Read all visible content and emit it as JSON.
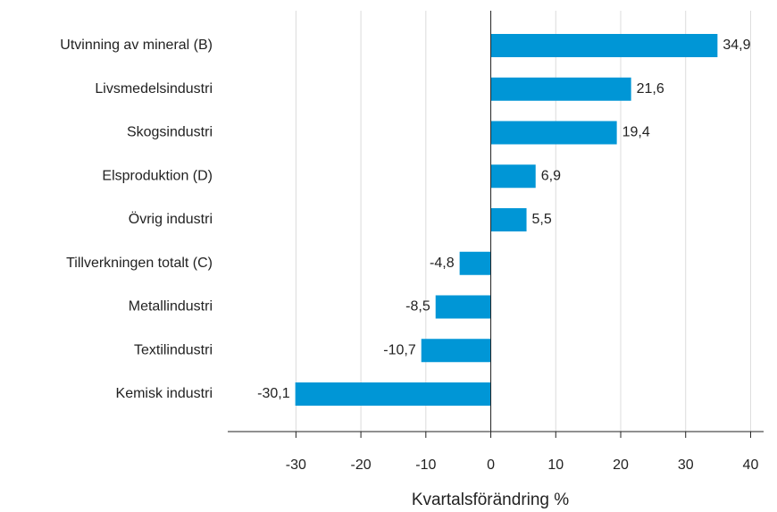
{
  "chart_data": {
    "type": "hbar",
    "xlabel": "Kvartalsförändring %",
    "categories": [
      "Utvinning av mineral (B)",
      "Livsmedelsindustri",
      "Skogsindustri",
      "Elsproduktion (D)",
      "Övrig industri",
      "Tillverkningen totalt (C)",
      "Metallindustri",
      "Textilindustri",
      "Kemisk industri"
    ],
    "values": [
      34.9,
      21.6,
      19.4,
      6.9,
      5.5,
      -4.8,
      -8.5,
      -10.7,
      -30.1
    ],
    "value_labels": [
      "34,9",
      "21,6",
      "19,4",
      "6,9",
      "5,5",
      "-4,8",
      "-8,5",
      "-10,7",
      "-30,1"
    ],
    "color": "#0096d6",
    "xlim": [
      -40.5,
      42
    ],
    "xticks": [
      -30,
      -20,
      -10,
      0,
      10,
      20,
      30,
      40
    ],
    "grid": true
  }
}
